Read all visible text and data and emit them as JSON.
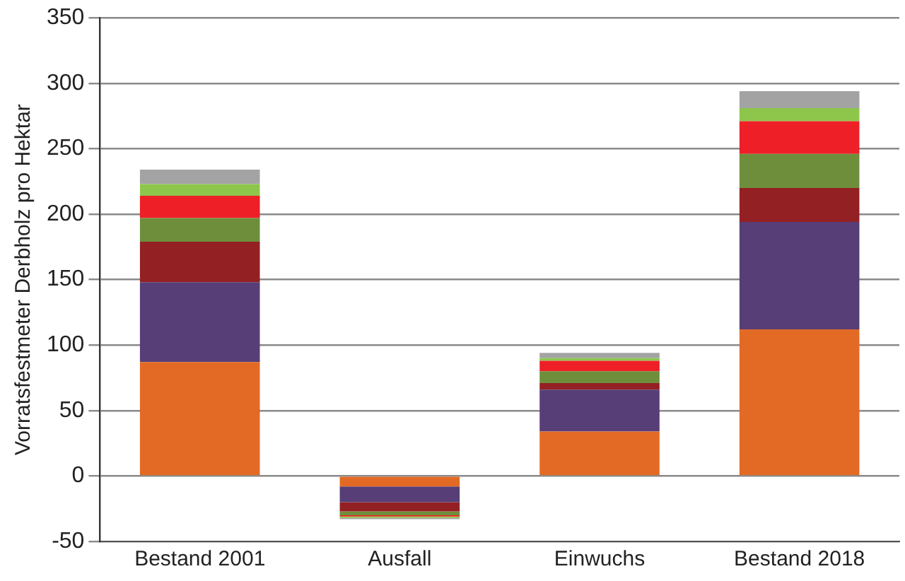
{
  "chart_data": {
    "type": "bar",
    "stacked": true,
    "ylabel": "Vorratsfestmeter Derbholz pro Hektar",
    "categories": [
      "Bestand 2001",
      "Ausfall",
      "Einwuchs",
      "Bestand 2018"
    ],
    "series": [
      {
        "color": "#e36a25",
        "values": [
          87,
          -8,
          34,
          112
        ]
      },
      {
        "color": "#573e76",
        "values": [
          61,
          -12,
          32,
          82
        ]
      },
      {
        "color": "#932023",
        "values": [
          31,
          -7,
          5,
          26
        ]
      },
      {
        "color": "#6e8e3b",
        "values": [
          18,
          -3,
          9,
          26
        ]
      },
      {
        "color": "#ee1f27",
        "values": [
          17,
          -1,
          8,
          25
        ]
      },
      {
        "color": "#8dc64b",
        "values": [
          9,
          -1,
          2,
          10
        ]
      },
      {
        "color": "#a3a3a3",
        "values": [
          11,
          -1,
          4,
          13
        ]
      }
    ],
    "ylim": [
      -50,
      350
    ],
    "yticks": [
      -50,
      0,
      50,
      100,
      150,
      200,
      250,
      300,
      350
    ],
    "grid": "y",
    "legend": false
  }
}
